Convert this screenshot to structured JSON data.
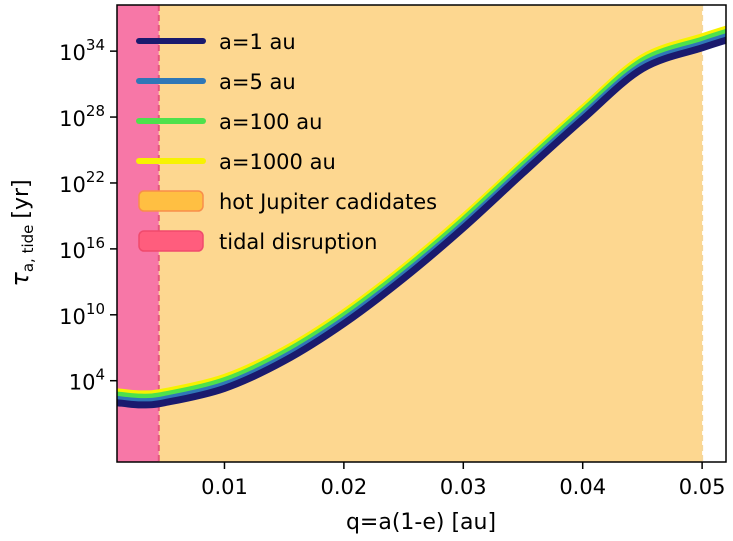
{
  "chart_data": {
    "type": "line",
    "xlabel": "q=a(1-e) [au]",
    "ylabel_symbol": "τ",
    "ylabel_subscript": "a, tide",
    "ylabel_unit": "[yr]",
    "xlim": [
      0.001,
      0.052
    ],
    "ylim_exponent": [
      -3.4,
      38.2
    ],
    "yscale": "log",
    "grid": false,
    "legend_placement": "top-left",
    "x_ticks": [
      {
        "value": 0.01,
        "label": "0.01"
      },
      {
        "value": 0.02,
        "label": "0.02"
      },
      {
        "value": 0.03,
        "label": "0.03"
      },
      {
        "value": 0.04,
        "label": "0.04"
      },
      {
        "value": 0.05,
        "label": "0.05"
      }
    ],
    "y_ticks": [
      {
        "exponent": 4,
        "base": "10",
        "sup": "4"
      },
      {
        "exponent": 10,
        "base": "10",
        "sup": "10"
      },
      {
        "exponent": 16,
        "base": "10",
        "sup": "16"
      },
      {
        "exponent": 22,
        "base": "10",
        "sup": "22"
      },
      {
        "exponent": 28,
        "base": "10",
        "sup": "28"
      },
      {
        "exponent": 34,
        "base": "10",
        "sup": "34"
      }
    ],
    "regions": [
      {
        "name": "hot Jupiter cadidates",
        "x_range": [
          0.0045,
          0.05
        ],
        "color": "#fdd790"
      },
      {
        "name": "tidal disruption",
        "x_range": [
          0.001,
          0.0045
        ],
        "color": "#f777a7"
      }
    ],
    "series": [
      {
        "name": "a=1 au",
        "color": "#1a1a6e",
        "x": [
          0.001,
          0.003,
          0.005,
          0.01,
          0.015,
          0.02,
          0.025,
          0.03,
          0.035,
          0.04,
          0.045,
          0.05,
          0.052
        ],
        "log10_y": [
          2.0,
          1.8,
          2.0,
          3.3,
          5.8,
          9.2,
          13.3,
          17.9,
          22.9,
          27.8,
          32.4,
          34.3,
          35.0
        ]
      },
      {
        "name": "a=5 au",
        "color": "#2f77b7",
        "x": [
          0.001,
          0.003,
          0.005,
          0.01,
          0.015,
          0.02,
          0.025,
          0.03,
          0.035,
          0.04,
          0.045,
          0.05,
          0.052
        ],
        "log10_y": [
          2.3,
          2.1,
          2.3,
          3.6,
          6.1,
          9.5,
          13.6,
          18.2,
          23.2,
          28.1,
          32.7,
          34.6,
          35.3
        ]
      },
      {
        "name": "a=100 au",
        "color": "#4ee14c",
        "x": [
          0.001,
          0.003,
          0.005,
          0.01,
          0.015,
          0.02,
          0.025,
          0.03,
          0.035,
          0.04,
          0.045,
          0.05,
          0.052
        ],
        "log10_y": [
          2.7,
          2.5,
          2.7,
          4.0,
          6.5,
          9.9,
          14.0,
          18.6,
          23.6,
          28.5,
          33.1,
          35.0,
          35.7
        ]
      },
      {
        "name": "a=1000 au",
        "color": "#f7f200",
        "x": [
          0.001,
          0.003,
          0.005,
          0.01,
          0.015,
          0.02,
          0.025,
          0.03,
          0.035,
          0.04,
          0.045,
          0.05,
          0.052
        ],
        "log10_y": [
          3.0,
          2.8,
          3.0,
          4.3,
          6.8,
          10.2,
          14.3,
          18.9,
          23.9,
          28.8,
          33.4,
          35.3,
          36.0
        ]
      }
    ]
  }
}
